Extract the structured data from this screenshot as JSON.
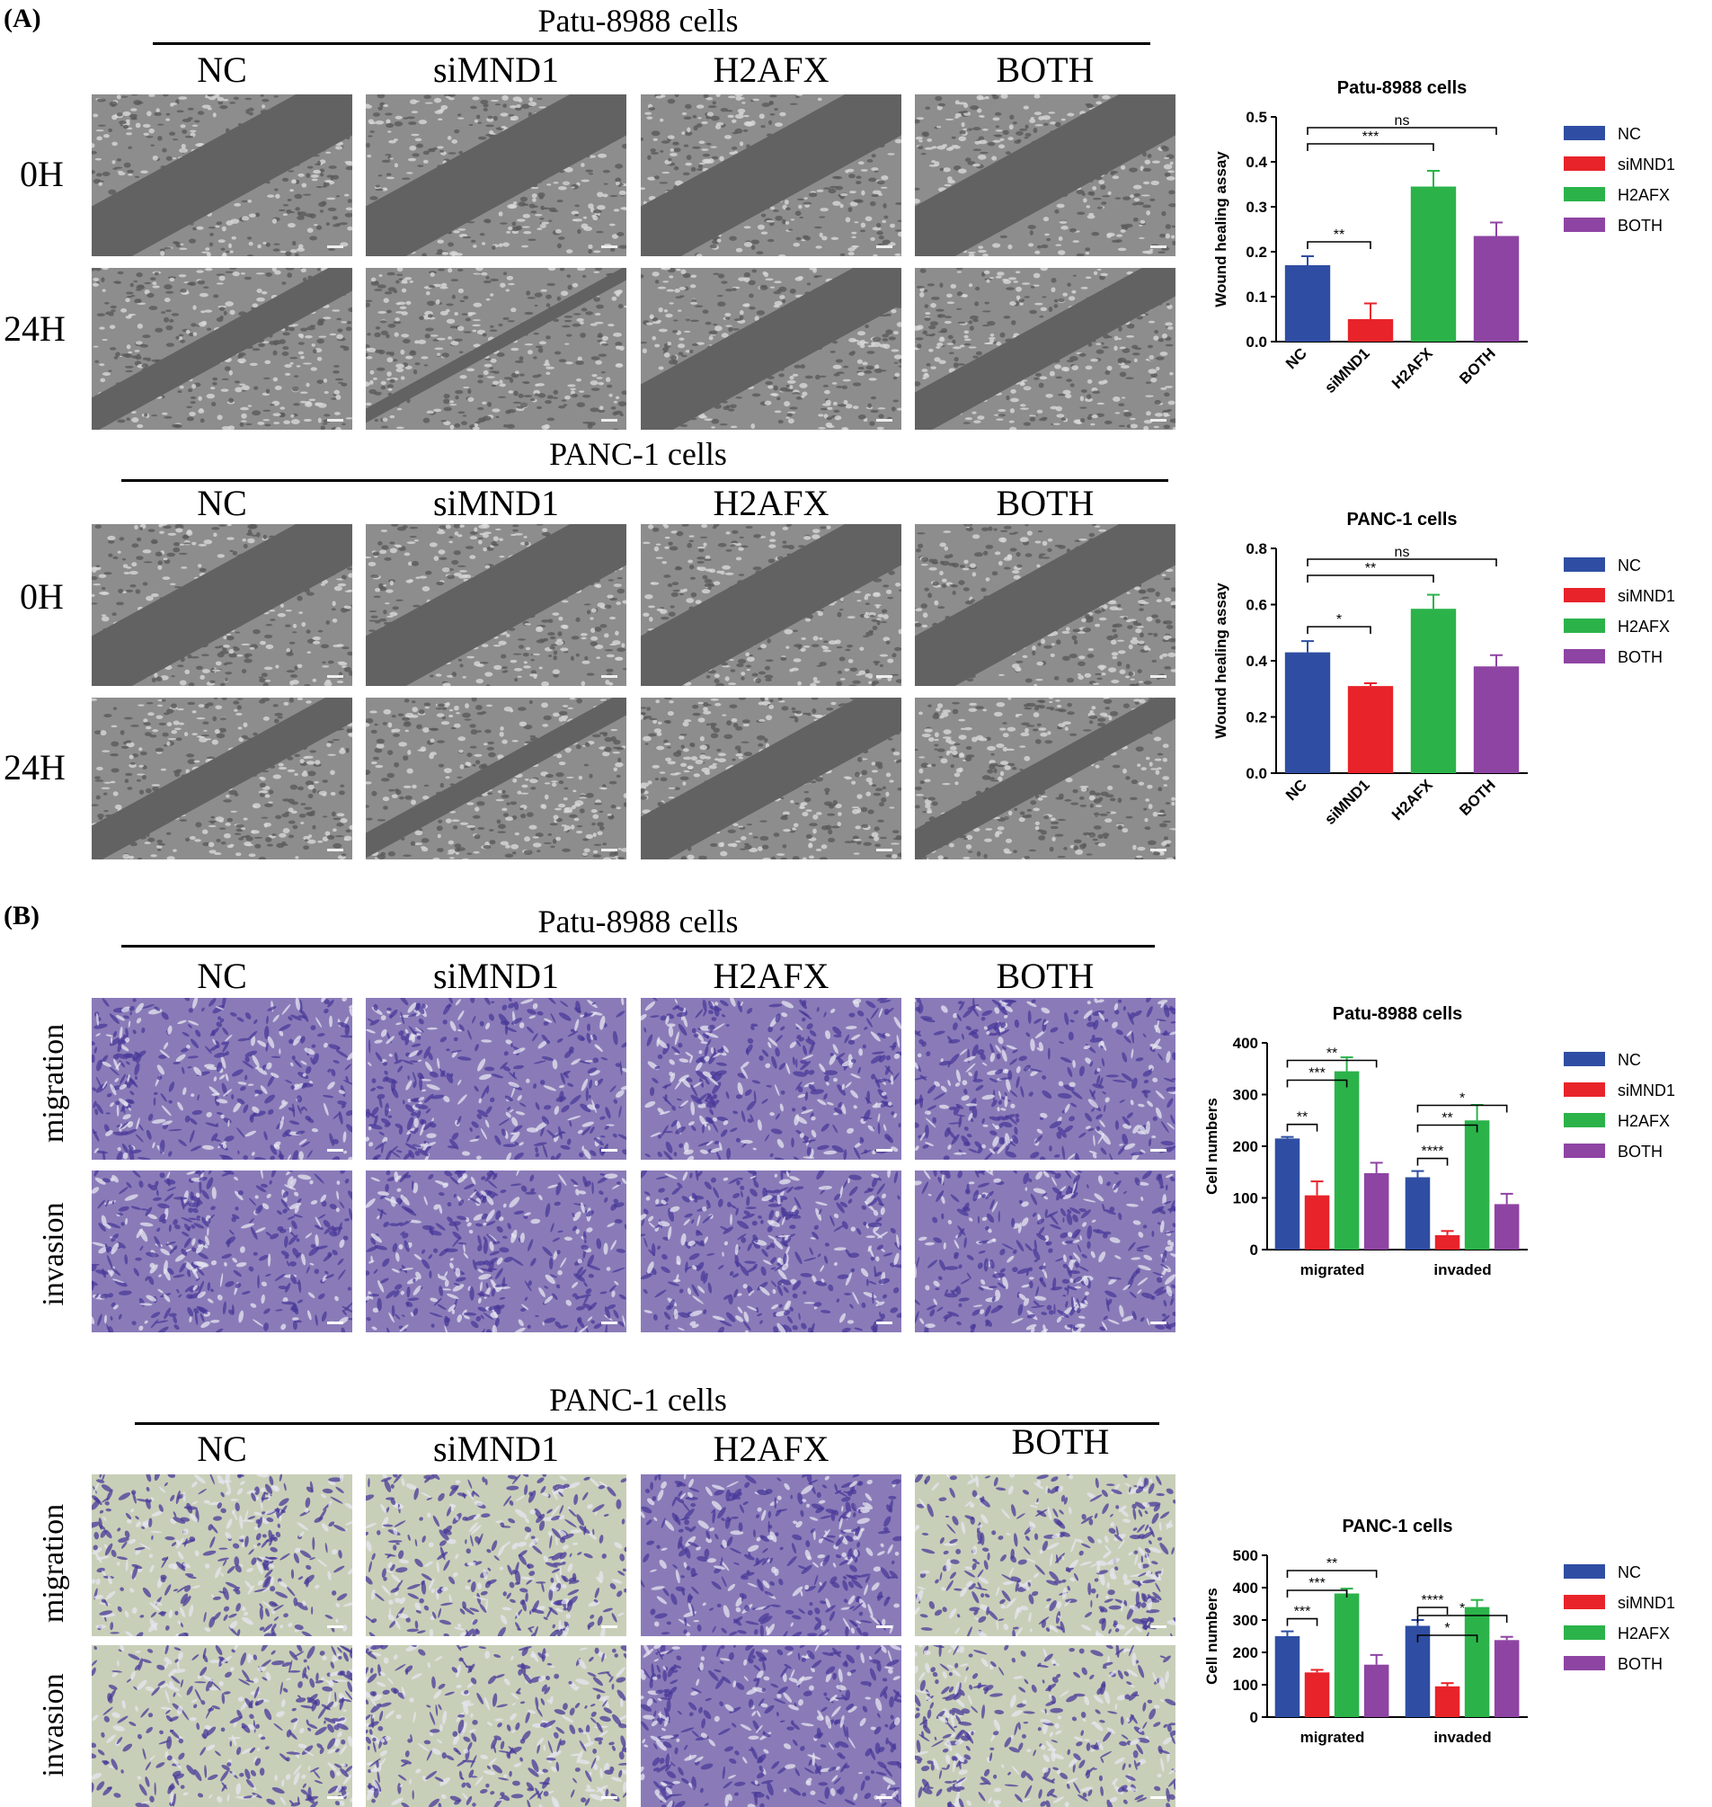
{
  "panels": {
    "A": {
      "label": "(A)",
      "blocks": [
        {
          "title": "Patu-8988 cells",
          "columns": [
            "NC",
            "siMND1",
            "H2AFX",
            "BOTH"
          ],
          "rows": [
            "0H",
            "24H"
          ]
        },
        {
          "title": "PANC-1 cells",
          "columns": [
            "NC",
            "siMND1",
            "H2AFX",
            "BOTH"
          ],
          "rows": [
            "0H",
            "24H"
          ]
        }
      ]
    },
    "B": {
      "label": "(B)",
      "blocks": [
        {
          "title": "Patu-8988 cells",
          "columns": [
            "NC",
            "siMND1",
            "H2AFX",
            "BOTH"
          ],
          "rows": [
            "migration",
            "invasion"
          ]
        },
        {
          "title": "PANC-1 cells",
          "columns": [
            "NC",
            "siMND1",
            "H2AFX",
            "BOTH"
          ],
          "rows": [
            "migration",
            "invasion"
          ]
        }
      ]
    }
  },
  "colors": {
    "NC": "#2f4ea3",
    "siMND1": "#e8232a",
    "H2AFX": "#2bb34a",
    "BOTH": "#8e44a3"
  },
  "chart_data": [
    {
      "type": "bar",
      "title": "Patu-8988 cells",
      "ylabel": "Wound healing assay",
      "xlabel": "",
      "categories": [
        "NC",
        "siMND1",
        "H2AFX",
        "BOTH"
      ],
      "values": [
        0.17,
        0.05,
        0.345,
        0.235
      ],
      "errors": [
        0.02,
        0.035,
        0.035,
        0.03
      ],
      "ylim": [
        0,
        0.5
      ],
      "yticks": [
        "0.0",
        "0.1",
        "0.2",
        "0.3",
        "0.4",
        "0.5"
      ],
      "legend": [
        "NC",
        "siMND1",
        "H2AFX",
        "BOTH"
      ],
      "legend_position": "right",
      "significance": [
        {
          "from": "NC",
          "to": "siMND1",
          "label": "**"
        },
        {
          "from": "NC",
          "to": "H2AFX",
          "label": "***"
        },
        {
          "from": "NC",
          "to": "BOTH",
          "label": "ns"
        }
      ]
    },
    {
      "type": "bar",
      "title": "PANC-1 cells",
      "ylabel": "Wound healing assay",
      "xlabel": "",
      "categories": [
        "NC",
        "siMND1",
        "H2AFX",
        "BOTH"
      ],
      "values": [
        0.43,
        0.31,
        0.585,
        0.38
      ],
      "errors": [
        0.04,
        0.01,
        0.05,
        0.04
      ],
      "ylim": [
        0,
        0.8
      ],
      "yticks": [
        "0.0",
        "0.2",
        "0.4",
        "0.6",
        "0.8"
      ],
      "legend": [
        "NC",
        "siMND1",
        "H2AFX",
        "BOTH"
      ],
      "legend_position": "right",
      "significance": [
        {
          "from": "NC",
          "to": "siMND1",
          "label": "*"
        },
        {
          "from": "NC",
          "to": "H2AFX",
          "label": "**"
        },
        {
          "from": "NC",
          "to": "BOTH",
          "label": "ns"
        }
      ]
    },
    {
      "type": "bar",
      "title": "Patu-8988 cells",
      "ylabel": "Cell numbers",
      "xlabel": "",
      "categories": [
        "migrated",
        "invaded"
      ],
      "series": [
        {
          "name": "NC",
          "values": [
            215,
            140
          ],
          "errors": [
            3,
            12
          ]
        },
        {
          "name": "siMND1",
          "values": [
            105,
            28
          ],
          "errors": [
            27,
            8
          ]
        },
        {
          "name": "H2AFX",
          "values": [
            345,
            250
          ],
          "errors": [
            27,
            30
          ]
        },
        {
          "name": "BOTH",
          "values": [
            148,
            88
          ],
          "errors": [
            20,
            20
          ]
        }
      ],
      "ylim": [
        0,
        400
      ],
      "yticks": [
        "0",
        "100",
        "200",
        "300",
        "400"
      ],
      "legend_position": "right",
      "significance": [
        {
          "group": "migrated",
          "from": "NC",
          "to": "siMND1",
          "label": "**"
        },
        {
          "group": "migrated",
          "from": "NC",
          "to": "H2AFX",
          "label": "***"
        },
        {
          "group": "migrated",
          "from": "NC",
          "to": "BOTH",
          "label": "**"
        },
        {
          "group": "invaded",
          "from": "NC",
          "to": "siMND1",
          "label": "****"
        },
        {
          "group": "invaded",
          "from": "NC",
          "to": "H2AFX",
          "label": "**"
        },
        {
          "group": "invaded",
          "from": "NC",
          "to": "BOTH",
          "label": "*"
        }
      ]
    },
    {
      "type": "bar",
      "title": "PANC-1 cells",
      "ylabel": "Cell numbers",
      "xlabel": "",
      "categories": [
        "migrated",
        "invaded"
      ],
      "series": [
        {
          "name": "NC",
          "values": [
            250,
            282
          ],
          "errors": [
            15,
            18
          ]
        },
        {
          "name": "siMND1",
          "values": [
            138,
            95
          ],
          "errors": [
            8,
            10
          ]
        },
        {
          "name": "H2AFX",
          "values": [
            382,
            340
          ],
          "errors": [
            15,
            22
          ]
        },
        {
          "name": "BOTH",
          "values": [
            162,
            238
          ],
          "errors": [
            30,
            10
          ]
        }
      ],
      "ylim": [
        0,
        500
      ],
      "yticks": [
        "0",
        "100",
        "200",
        "300",
        "400",
        "500"
      ],
      "legend_position": "right",
      "significance": [
        {
          "group": "migrated",
          "from": "NC",
          "to": "siMND1",
          "label": "***"
        },
        {
          "group": "migrated",
          "from": "NC",
          "to": "H2AFX",
          "label": "***"
        },
        {
          "group": "migrated",
          "from": "NC",
          "to": "BOTH",
          "label": "**"
        },
        {
          "group": "invaded",
          "from": "NC",
          "to": "siMND1",
          "label": "****"
        },
        {
          "group": "invaded",
          "from": "NC",
          "to": "H2AFX",
          "label": "*"
        },
        {
          "group": "invaded",
          "from": "NC",
          "to": "BOTH",
          "label": "*"
        }
      ]
    }
  ]
}
